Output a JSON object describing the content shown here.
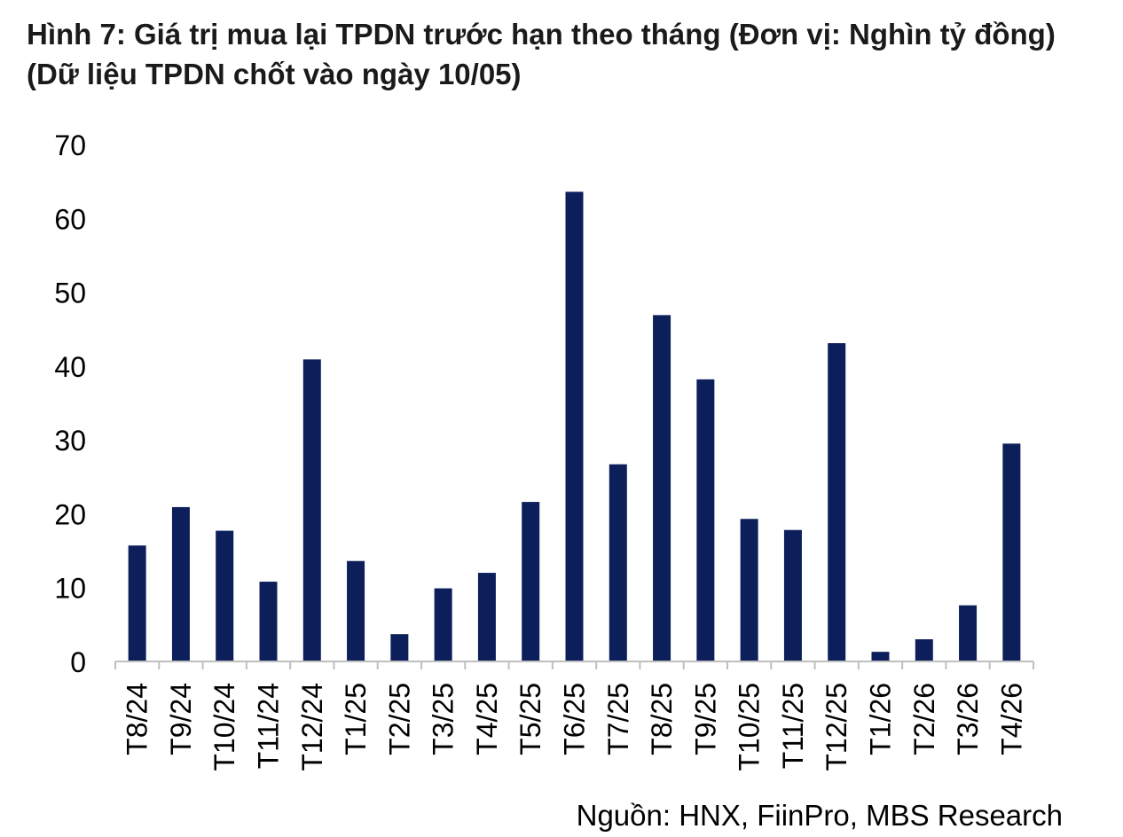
{
  "chart_data": {
    "type": "bar",
    "title": "Hình 7: Giá trị mua lại TPDN trước hạn theo tháng (Đơn vị: Nghìn tỷ đồng) (Dữ liệu TPDN chốt vào ngày 10/05)",
    "categories": [
      "T8/24",
      "T9/24",
      "T10/24",
      "T11/24",
      "T12/24",
      "T1/25",
      "T2/25",
      "T3/25",
      "T4/25",
      "T5/25",
      "T6/25",
      "T7/25",
      "T8/25",
      "T9/25",
      "T10/25",
      "T11/25",
      "T12/25",
      "T1/26",
      "T2/26",
      "T3/26",
      "T4/26"
    ],
    "values": [
      15.7,
      20.9,
      17.7,
      10.8,
      40.9,
      13.6,
      3.7,
      9.9,
      12.0,
      21.6,
      63.6,
      26.7,
      46.9,
      38.2,
      19.3,
      17.8,
      43.1,
      1.3,
      3.0,
      7.6,
      29.5
    ],
    "ylim": [
      0,
      70
    ],
    "yticks": [
      0,
      10,
      20,
      30,
      40,
      50,
      60,
      70
    ],
    "xlabel": "",
    "ylabel": "",
    "grid": false,
    "legend": "none",
    "bar_color": "#0c1f5a",
    "axis_color": "#bfbfbf",
    "source": "Nguồn: HNX, FiinPro, MBS Research"
  }
}
